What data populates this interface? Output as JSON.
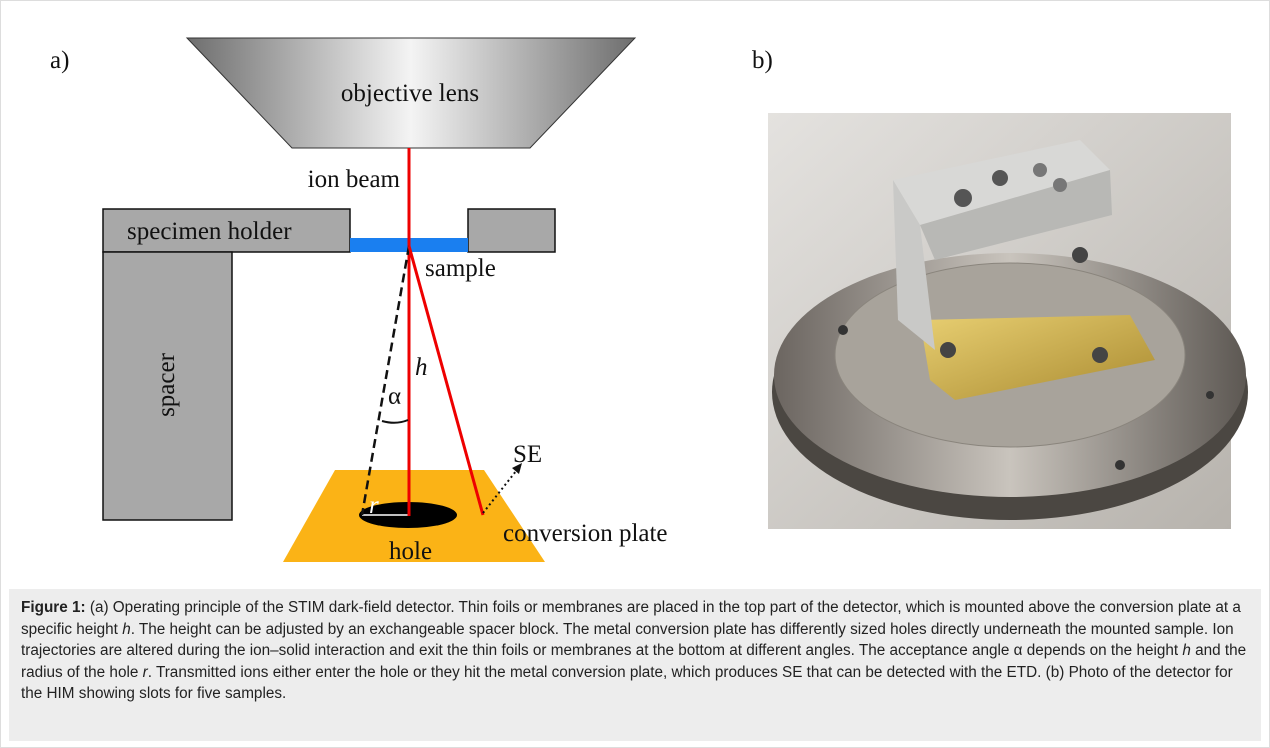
{
  "panel_a": {
    "label": "a)",
    "objective_lens": "objective lens",
    "ion_beam": "ion beam",
    "specimen_holder": "specimen holder",
    "sample": "sample",
    "spacer": "spacer",
    "alpha": "α",
    "h": "h",
    "se": "SE",
    "r": "r",
    "hole": "hole",
    "conversion_plate": "conversion plate"
  },
  "panel_b": {
    "label": "b)"
  },
  "caption": {
    "label": "Figure 1:",
    "parts": [
      " (a) Operating principle of the STIM dark-field detector. Thin foils or membranes are placed in the top part of the detector, which is mounted above the conversion plate at a specific height ",
      "h",
      ". The height can be adjusted by an exchangeable spacer block. The metal conversion plate has differently sized holes directly underneath the mounted sample. Ion trajectories are altered during the ion–solid interaction and exit the thin foils or membranes at the bottom at different angles. The acceptance angle α depends on the height ",
      "h",
      " and the radius of the hole ",
      "r",
      ". Transmitted ions either enter the hole or they hit the metal conversion plate, which produces SE that can be detected with the ETD. (b) Photo of the detector for the HIM showing slots for five samples."
    ]
  }
}
